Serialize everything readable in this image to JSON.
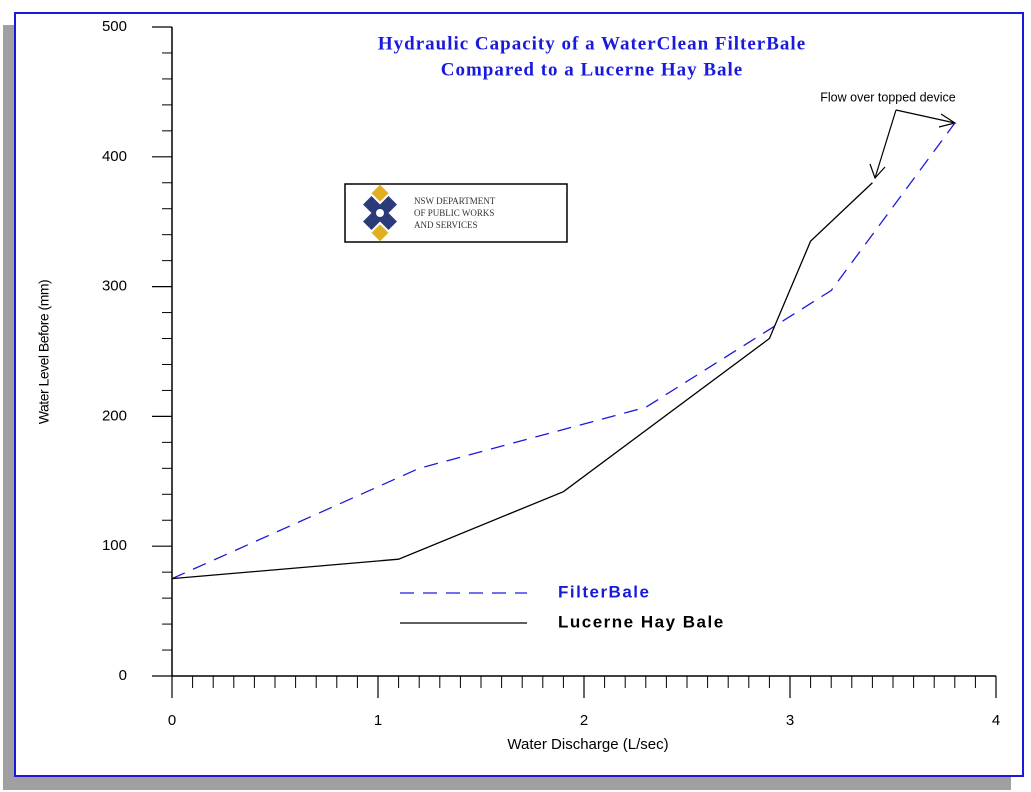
{
  "chart_data": {
    "type": "line",
    "title_lines": [
      "Hydraulic Capacity of a WaterClean FilterBale",
      "Compared to a Lucerne Hay Bale"
    ],
    "x_label": "Water Discharge (L/sec)",
    "y_label": "Water Level Before (mm)",
    "annotation": "Flow over topped device",
    "logo_lines": [
      "NSW DEPARTMENT",
      "OF PUBLIC WORKS",
      "AND SERVICES"
    ],
    "xlim": [
      0,
      4
    ],
    "xticks": [
      0,
      1,
      2,
      3,
      4
    ],
    "xminorticks": [
      0.1,
      0.2,
      0.3,
      0.4,
      0.5,
      0.6,
      0.7,
      0.8,
      0.9,
      1.1,
      1.2,
      1.3,
      1.4,
      1.5,
      1.6,
      1.7,
      1.8,
      1.9,
      2.1,
      2.2,
      2.3,
      2.4,
      2.5,
      2.6,
      2.7,
      2.8,
      2.9,
      3.1,
      3.2,
      3.3,
      3.4,
      3.5,
      3.6,
      3.7,
      3.8,
      3.9
    ],
    "ylim": [
      0,
      500
    ],
    "yticks": [
      0,
      100,
      200,
      300,
      400,
      500
    ],
    "yminorticks": [
      20,
      40,
      60,
      80,
      120,
      140,
      160,
      180,
      220,
      240,
      260,
      280,
      320,
      340,
      360,
      380,
      420,
      440,
      460,
      480
    ],
    "series": [
      {
        "name": "FilterBale",
        "color": "#1a1adc",
        "dash": true,
        "x": [
          0,
          1.2,
          2.3,
          3.2,
          3.8
        ],
        "values": [
          75,
          160,
          207,
          297,
          426
        ]
      },
      {
        "name": "Lucerne Hay Bale",
        "color": "#000000",
        "dash": false,
        "x": [
          0,
          1.1,
          1.9,
          2.9,
          3.1,
          3.4
        ],
        "values": [
          75,
          90,
          142,
          260,
          335,
          380
        ]
      }
    ]
  }
}
